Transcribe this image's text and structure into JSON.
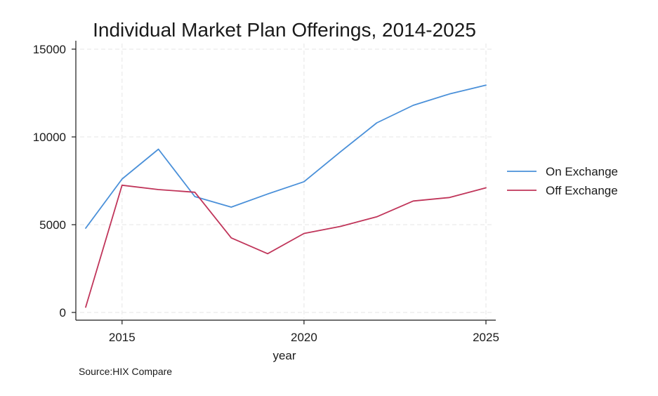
{
  "chart_data": {
    "type": "line",
    "title": "Individual Market Plan Offerings, 2014-2025",
    "xlabel": "year",
    "ylabel": "",
    "x": [
      2014,
      2015,
      2016,
      2017,
      2018,
      2019,
      2020,
      2021,
      2022,
      2023,
      2024,
      2025
    ],
    "xlim": [
      2014,
      2025
    ],
    "ylim": [
      0,
      15000
    ],
    "xticks": [
      2015,
      2020,
      2025
    ],
    "yticks": [
      0,
      5000,
      10000,
      15000
    ],
    "grid": true,
    "legend_position": "right",
    "series": [
      {
        "name": "On Exchange",
        "color": "#4a90d9",
        "values": [
          4800,
          7600,
          9300,
          6600,
          6000,
          6750,
          7450,
          9150,
          10800,
          11800,
          12450,
          12950
        ]
      },
      {
        "name": "Off Exchange",
        "color": "#c0355a",
        "values": [
          300,
          7250,
          7000,
          6850,
          4250,
          3350,
          4500,
          4900,
          5450,
          6350,
          6550,
          7100
        ]
      }
    ],
    "source": "Source:HIX Compare"
  }
}
